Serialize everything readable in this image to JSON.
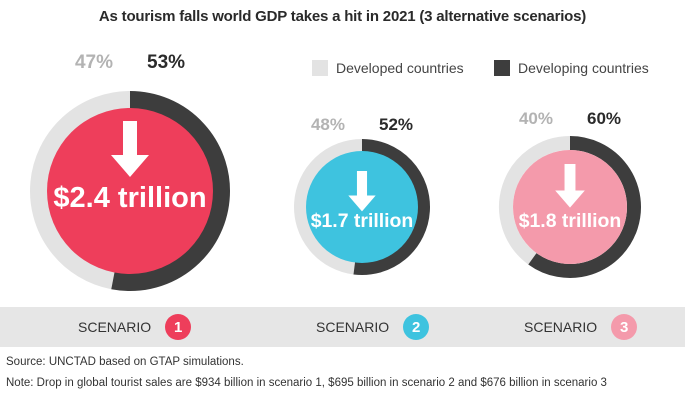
{
  "title": "As tourism falls world GDP takes a hit in 2021 (3 alternative scenarios)",
  "legend": {
    "developed": {
      "label": "Developed countries",
      "color": "#e3e3e3"
    },
    "developing": {
      "label": "Developing countries",
      "color": "#3d3d3d"
    }
  },
  "chart_data": {
    "type": "pie",
    "title": "As tourism falls world GDP takes a hit in 2021 (3 alternative scenarios)",
    "legend_position": "top-right",
    "series_names": [
      "Developed countries",
      "Developing countries"
    ],
    "scenarios": [
      {
        "label": "SCENARIO",
        "number": "1",
        "gdp_drop": "$2.4 trillion",
        "gdp_drop_value": 2.4,
        "developed_pct": 47,
        "developing_pct": 53,
        "developed_label": "47%",
        "developing_label": "53%",
        "circle_color": "#ee3e5b"
      },
      {
        "label": "SCENARIO",
        "number": "2",
        "gdp_drop": "$1.7 trillion",
        "gdp_drop_value": 1.7,
        "developed_pct": 48,
        "developing_pct": 52,
        "developed_label": "48%",
        "developing_label": "52%",
        "circle_color": "#3ec3df"
      },
      {
        "label": "SCENARIO",
        "number": "3",
        "gdp_drop": "$1.8 trillion",
        "gdp_drop_value": 1.8,
        "developed_pct": 40,
        "developing_pct": 60,
        "developed_label": "40%",
        "developing_label": "60%",
        "circle_color": "#f49aab"
      }
    ]
  },
  "footer": {
    "source": "Source: UNCTAD based on GTAP simulations.",
    "note": "Note: Drop in global tourist sales are $934 billion in scenario 1, $695 billion in scenario 2 and $676 billion in scenario 3"
  }
}
